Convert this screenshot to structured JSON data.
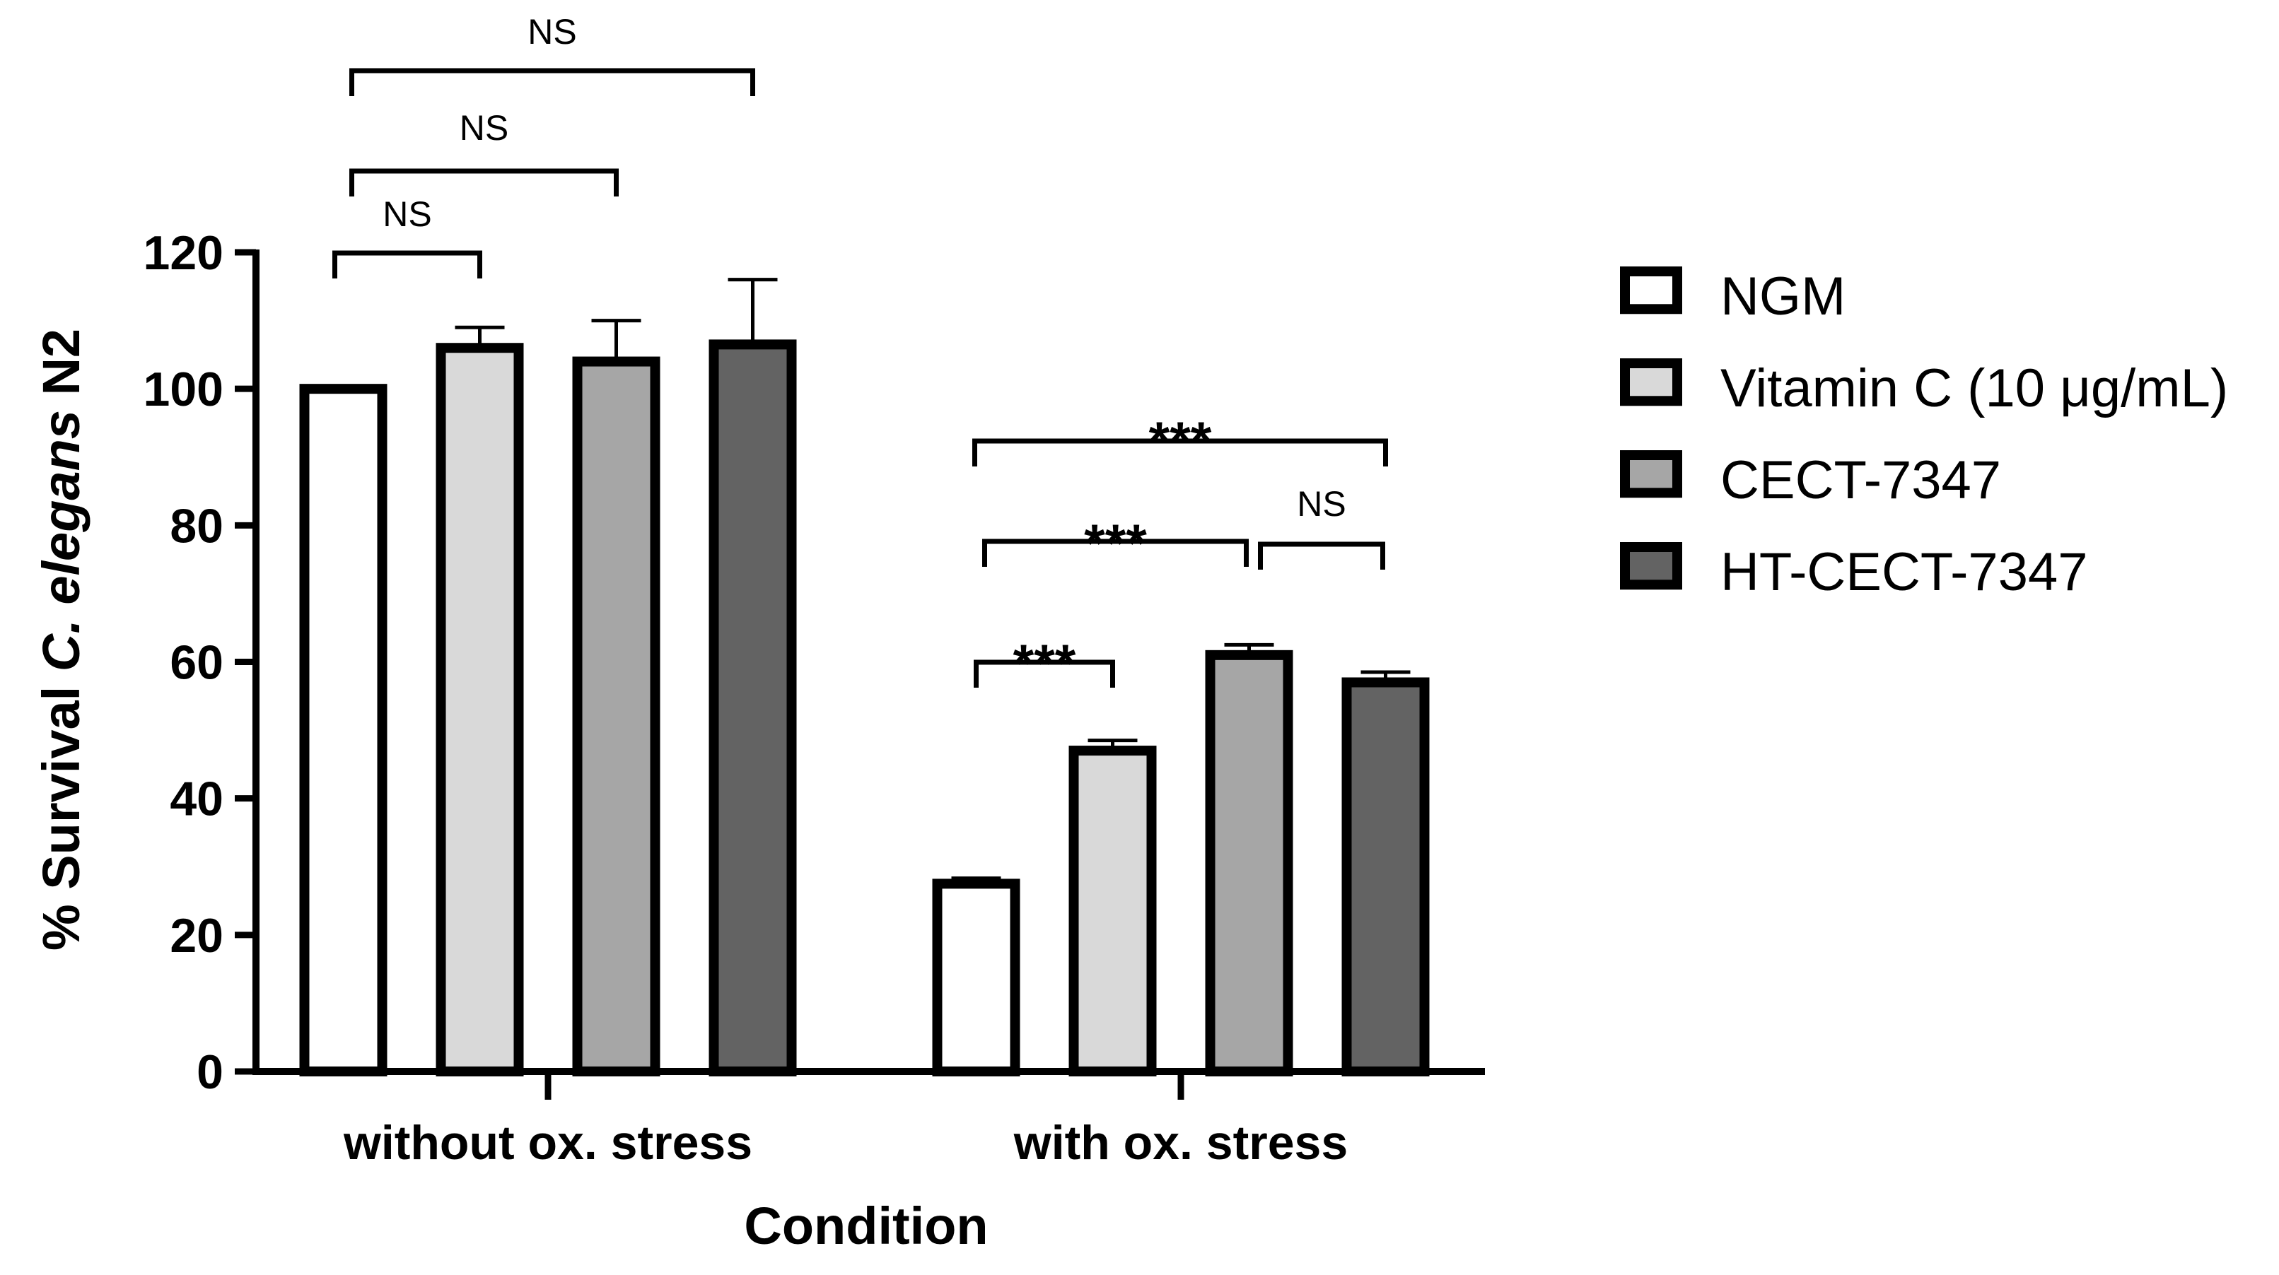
{
  "chart_data": {
    "type": "bar",
    "title": "",
    "xlabel": "Condition",
    "ylabel": {
      "prefix": "% Survival ",
      "italic": "C. elegans",
      "suffix": " N2"
    },
    "ylim": [
      0,
      120
    ],
    "yticks": [
      0,
      20,
      40,
      60,
      80,
      100,
      120
    ],
    "categories": [
      "without ox. stress",
      "with ox. stress"
    ],
    "series": [
      {
        "name": "NGM",
        "color": "#ffffff",
        "values": [
          100,
          27.5
        ],
        "errors": [
          0,
          0.8
        ]
      },
      {
        "name": "Vitamin C (10 μg/mL)",
        "color": "#d9d9d9",
        "values": [
          106,
          47
        ],
        "errors": [
          3,
          1.5
        ]
      },
      {
        "name": "CECT-7347",
        "color": "#a6a6a6",
        "values": [
          104,
          61
        ],
        "errors": [
          6,
          1.5
        ]
      },
      {
        "name": "HT-CECT-7347",
        "color": "#636363",
        "values": [
          106.5,
          57
        ],
        "errors": [
          9.5,
          1.5
        ]
      }
    ],
    "significance": [
      {
        "category": 0,
        "from": 0,
        "to": 1,
        "label": "NS",
        "kind": "ns"
      },
      {
        "category": 0,
        "from": 0,
        "to": 2,
        "label": "NS",
        "kind": "ns"
      },
      {
        "category": 0,
        "from": 0,
        "to": 3,
        "label": "NS",
        "kind": "ns"
      },
      {
        "category": 1,
        "from": 0,
        "to": 1,
        "label": "***",
        "kind": "star"
      },
      {
        "category": 1,
        "from": 0,
        "to": 2,
        "label": "***",
        "kind": "star"
      },
      {
        "category": 1,
        "from": 2,
        "to": 3,
        "label": "NS",
        "kind": "ns"
      },
      {
        "category": 1,
        "from": 0,
        "to": 3,
        "label": "***",
        "kind": "star"
      }
    ],
    "legend_position": "right"
  }
}
